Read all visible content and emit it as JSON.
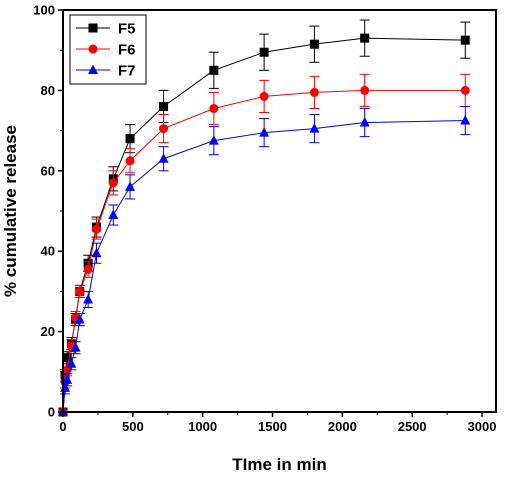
{
  "chart_data": {
    "type": "line",
    "title": "",
    "xlabel": "TIme in min",
    "ylabel": "% cumulative release",
    "xlim": [
      0,
      3100
    ],
    "ylim": [
      0,
      100
    ],
    "xticks": [
      0,
      500,
      1000,
      1500,
      2000,
      2500,
      3000
    ],
    "yticks": [
      0,
      20,
      40,
      60,
      80,
      100
    ],
    "grid": false,
    "legend_position": "top-left",
    "series": [
      {
        "name": "F5",
        "color": "#000000",
        "marker": "square",
        "x": [
          0,
          15,
          30,
          60,
          90,
          120,
          180,
          240,
          360,
          480,
          720,
          1080,
          1440,
          1800,
          2160,
          2880
        ],
        "y": [
          0,
          9,
          13.5,
          17,
          23,
          30,
          37,
          46,
          58,
          68,
          76,
          85,
          89.5,
          91.5,
          93,
          92.5
        ],
        "error": [
          0,
          1.5,
          1.5,
          1.5,
          1.5,
          1.5,
          2,
          2.5,
          3,
          3.5,
          4,
          4.5,
          4.5,
          4.5,
          4.5,
          4.5
        ]
      },
      {
        "name": "F6",
        "color": "#ff0000",
        "marker": "circle",
        "x": [
          0,
          15,
          30,
          60,
          90,
          120,
          180,
          240,
          360,
          480,
          720,
          1080,
          1440,
          1800,
          2160,
          2880
        ],
        "y": [
          0,
          7.5,
          10.5,
          16.5,
          23.5,
          30,
          35.5,
          45.5,
          57,
          62.5,
          70.5,
          75.5,
          78.5,
          79.5,
          80,
          80
        ],
        "error": [
          0,
          1.5,
          1.5,
          1.5,
          1.5,
          1.5,
          2,
          2.5,
          3,
          3,
          3.5,
          4,
          4,
          4,
          4,
          4
        ]
      },
      {
        "name": "F7",
        "color": "#0000ff",
        "marker": "triangle",
        "x": [
          0,
          15,
          30,
          60,
          90,
          120,
          180,
          240,
          360,
          480,
          720,
          1080,
          1440,
          1800,
          2160,
          2880
        ],
        "y": [
          0,
          6,
          8,
          12,
          16,
          23,
          28,
          39.5,
          49,
          56,
          63,
          67.5,
          69.5,
          70.5,
          72,
          72.5
        ],
        "error": [
          0,
          1.5,
          1.5,
          1.5,
          1.5,
          1.5,
          2,
          2.5,
          2.5,
          3,
          3,
          3.5,
          3.5,
          3.5,
          3.5,
          3.5
        ]
      }
    ]
  }
}
